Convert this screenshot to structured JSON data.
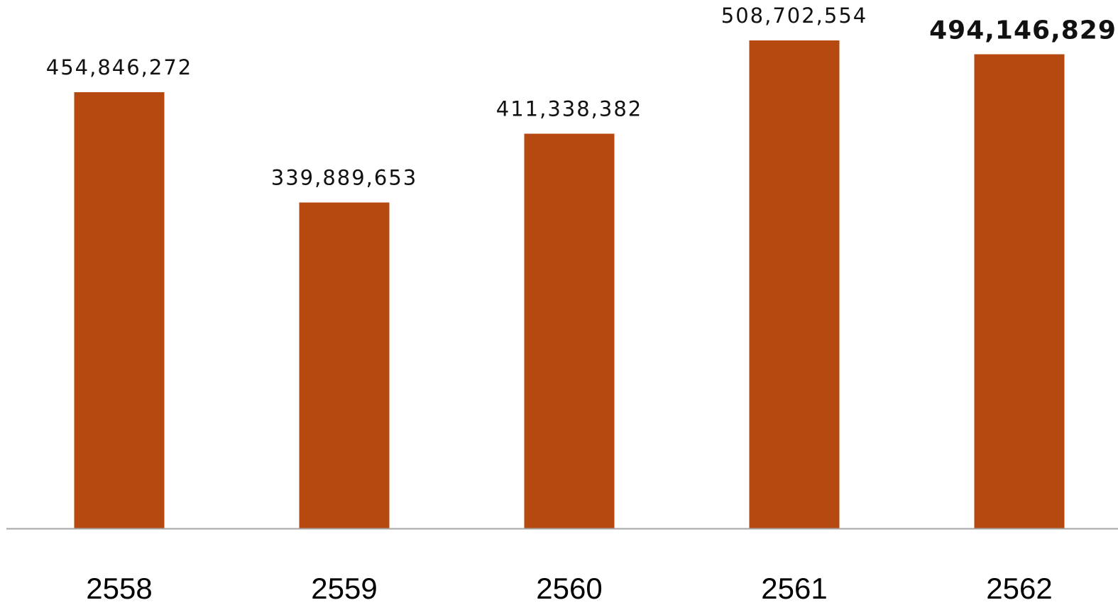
{
  "chart_data": {
    "type": "bar",
    "title": "",
    "xlabel": "",
    "ylabel": "",
    "categories": [
      "2558",
      "2559",
      "2560",
      "2561",
      "2562"
    ],
    "values": [
      454846272,
      339889653,
      411338382,
      508702554,
      494146829
    ],
    "value_labels": [
      "454,846,272",
      "339,889,653",
      "411,338,382",
      "508,702,554",
      "494,146,829"
    ],
    "emphasized_index": 4,
    "ylim": [
      0,
      508702554
    ],
    "grid": false,
    "legend": "none",
    "bar_color": "#b5490f",
    "axis_color": "#a6a6a6"
  }
}
